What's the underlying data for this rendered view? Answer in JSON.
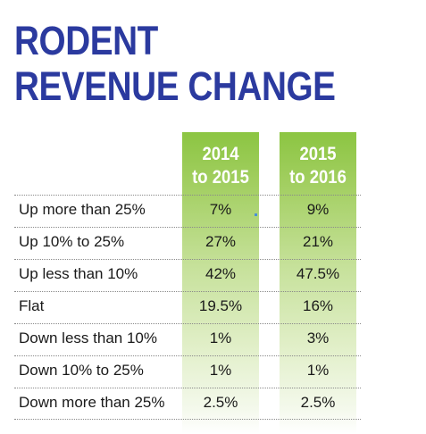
{
  "title_lines": [
    "RODENT",
    "REVENUE CHANGE"
  ],
  "chart_data": {
    "type": "table",
    "columns": [
      "2014 to 2015",
      "2015 to 2016"
    ],
    "column_header_lines": [
      [
        "2014",
        "to 2015"
      ],
      [
        "2015",
        "to 2016"
      ]
    ],
    "rows": [
      {
        "label": "Up more than 25%",
        "values": [
          "7%",
          "9%"
        ]
      },
      {
        "label": "Up 10% to 25%",
        "values": [
          "27%",
          "21%"
        ]
      },
      {
        "label": "Up less than 10%",
        "values": [
          "42%",
          "47.5%"
        ]
      },
      {
        "label": "Flat",
        "values": [
          "19.5%",
          "16%"
        ]
      },
      {
        "label": "Down less than 10%",
        "values": [
          "1%",
          "3%"
        ]
      },
      {
        "label": "Down 10% to 25%",
        "values": [
          "1%",
          "1%"
        ]
      },
      {
        "label": "Down more than 25%",
        "values": [
          "2.5%",
          "2.5%"
        ]
      }
    ]
  },
  "colors": {
    "title": "#2b3a9f",
    "column_band": "#8cc542",
    "text": "#1a1a1a"
  }
}
